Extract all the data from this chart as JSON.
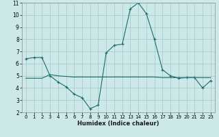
{
  "xlabel": "Humidex (Indice chaleur)",
  "line1_x": [
    0,
    1,
    2,
    3,
    4,
    5,
    6,
    7,
    8,
    9,
    10,
    11,
    12,
    13,
    14,
    15,
    16,
    17,
    18,
    19,
    20,
    21,
    22,
    23
  ],
  "line1_y": [
    6.4,
    6.5,
    6.5,
    5.0,
    4.5,
    4.1,
    3.5,
    3.2,
    2.3,
    2.6,
    6.9,
    7.5,
    7.6,
    10.5,
    11.0,
    10.1,
    8.0,
    5.5,
    5.0,
    4.8,
    4.85,
    4.85,
    4.0,
    4.6
  ],
  "line2_x": [
    0,
    1,
    2,
    3,
    4,
    5,
    6,
    7,
    8,
    9,
    10,
    11,
    12,
    13,
    14,
    15,
    16,
    17,
    18,
    19,
    20,
    21,
    22,
    23
  ],
  "line2_y": [
    4.8,
    4.8,
    4.8,
    5.1,
    5.0,
    4.95,
    4.9,
    4.9,
    4.9,
    4.9,
    4.9,
    4.9,
    4.9,
    4.9,
    4.9,
    4.9,
    4.9,
    4.85,
    4.85,
    4.85,
    4.85,
    4.85,
    4.85,
    4.85
  ],
  "line_color": "#1a6b6b",
  "bg_color": "#cce8e8",
  "grid_color": "#aacccc",
  "xlim_min": -0.5,
  "xlim_max": 23.5,
  "ylim_min": 2,
  "ylim_max": 11,
  "xticks": [
    0,
    1,
    2,
    3,
    4,
    5,
    6,
    7,
    8,
    9,
    10,
    11,
    12,
    13,
    14,
    15,
    16,
    17,
    18,
    19,
    20,
    21,
    22,
    23
  ],
  "yticks": [
    2,
    3,
    4,
    5,
    6,
    7,
    8,
    9,
    10,
    11
  ],
  "tick_fontsize": 5,
  "xlabel_fontsize": 6,
  "marker_size": 2.0
}
